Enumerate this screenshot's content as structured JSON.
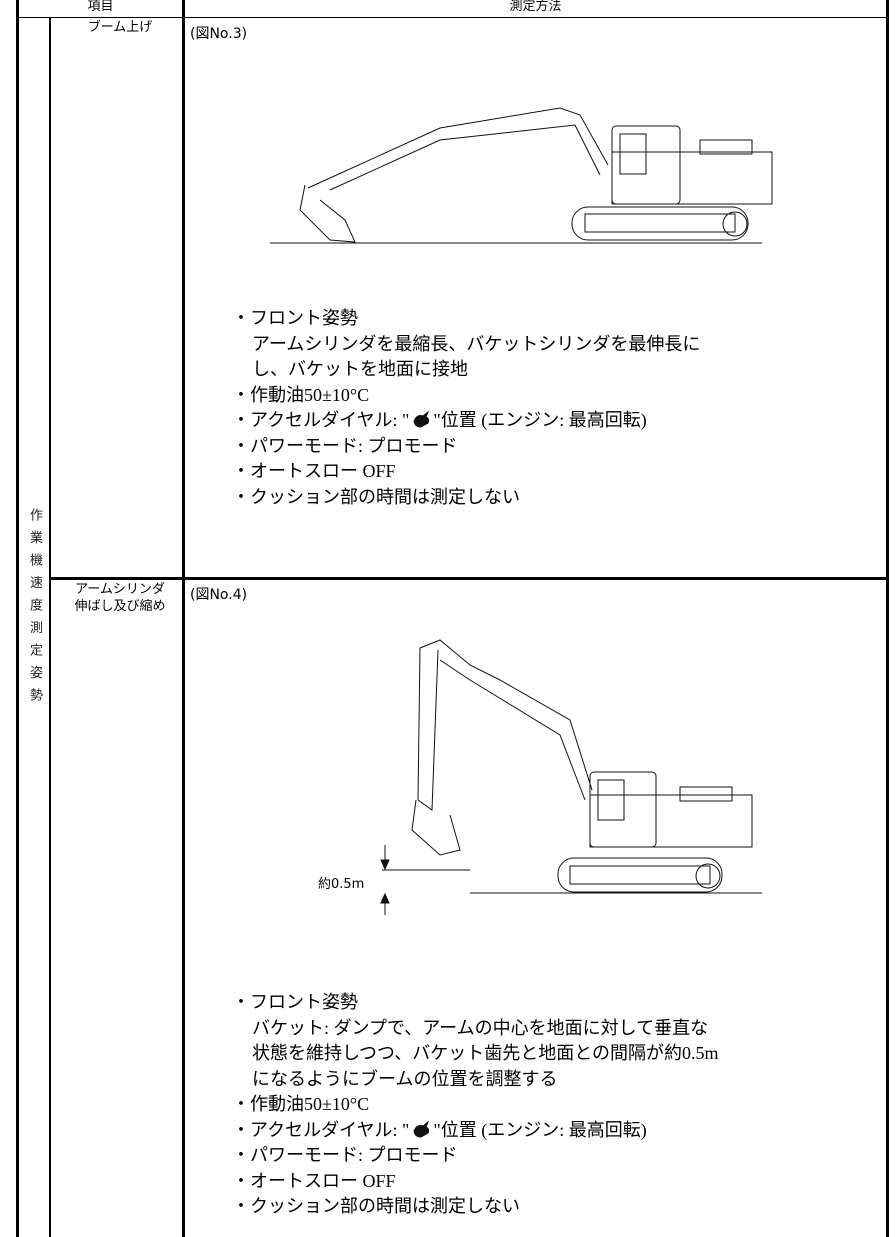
{
  "header": {
    "item": "項目",
    "method": "測定方法"
  },
  "side_label": "作業機速度測定姿勢",
  "rows": [
    {
      "item": [
        "ブーム上げ"
      ],
      "figure": "(図No.3)",
      "bullets": [
        {
          "text": "・フロント姿勢",
          "detail": [
            "アームシリンダを最縮長、バケットシリンダを最伸長に",
            "し、バケットを地面に接地"
          ]
        },
        {
          "text": "・作動油50±10°C"
        },
        {
          "text": "・アクセルダイヤル: \"",
          "after": "\"位置 (エンジン: 最高回転)"
        },
        {
          "text": "・パワーモード: プロモード"
        },
        {
          "text": "・オートスロー OFF"
        },
        {
          "text": "・クッション部の時間は測定しない"
        }
      ]
    },
    {
      "item": [
        "アームシリンダ",
        "伸ばし及び縮め"
      ],
      "figure": "(図No.4)",
      "dimension": "約0.5m",
      "bullets": [
        {
          "text": "・フロント姿勢",
          "detail": [
            "バケット: ダンプで、アームの中心を地面に対して垂直な",
            "状態を維持しつつ、バケット歯先と地面との間隔が約0.5m",
            "になるようにブームの位置を調整する"
          ]
        },
        {
          "text": "・作動油50±10°C"
        },
        {
          "text": "・アクセルダイヤル: \"",
          "after": "\"位置 (エンジン: 最高回転)"
        },
        {
          "text": "・パワーモード: プロモード"
        },
        {
          "text": "・オートスロー OFF"
        },
        {
          "text": "・クッション部の時間は測定しない"
        }
      ]
    }
  ]
}
